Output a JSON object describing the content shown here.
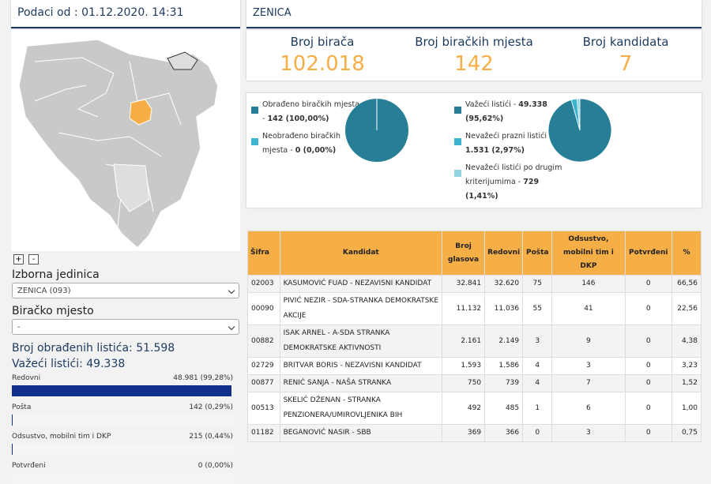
{
  "sidebar": {
    "updated": "Podaci od : 01.12.2020. 14:31",
    "zoom_in": "+",
    "zoom_out": "-",
    "unit_label": "Izborna jedinica",
    "unit_value": "ZENICA (093)",
    "station_label": "Biračko mjesto",
    "station_value": "-",
    "processed": "Broj obrađenih listića: 51.598",
    "valid": "Važeći listići: 49.338",
    "bars": [
      {
        "label": "Redovni",
        "value_text": "48.981 (99,28%)",
        "percent": 99.28
      },
      {
        "label": "Pošta",
        "value_text": "142 (0,29%)",
        "percent": 0.29
      },
      {
        "label": "Odsustvo, mobilni tim i DKP",
        "value_text": "215 (0,44%)",
        "percent": 0.44
      },
      {
        "label": "Potvrđeni",
        "value_text": "0 (0,00%)",
        "percent": 0
      }
    ]
  },
  "header": {
    "title": "ZENICA"
  },
  "stats": [
    {
      "label": "Broj birača",
      "value": "102.018"
    },
    {
      "label": "Broj biračkih mjesta",
      "value": "142"
    },
    {
      "label": "Broj kandidata",
      "value": "7"
    }
  ],
  "pies": [
    {
      "slices": [
        {
          "label": "Obrađeno biračkih mjesta -",
          "value_text": "142 (100,00%)",
          "percent": 100,
          "color": "#267f97"
        },
        {
          "label": "Neobrađeno biračkih mjesta -",
          "value_text": "0 (0,00%)",
          "percent": 0,
          "color": "#3db5d0"
        }
      ]
    },
    {
      "slices": [
        {
          "label": "Važeći listići -",
          "value_text": "49.338 (95,62%)",
          "percent": 95.62,
          "color": "#267f97"
        },
        {
          "label": "Nevažeći prazni listići -",
          "value_text": "1.531 (2,97%)",
          "percent": 2.97,
          "color": "#3db5d0"
        },
        {
          "label": "Nevažeći listići po drugim kriterijumima -",
          "value_text": "729 (1,41%)",
          "percent": 1.41,
          "color": "#93d4e4"
        }
      ]
    }
  ],
  "table": {
    "columns": [
      "Šifra",
      "Kandidat",
      "Broj glasova",
      "Redovni",
      "Pošta",
      "Odsustvo, mobilni tim i DKP",
      "Potvrđeni",
      "%"
    ],
    "rows": [
      [
        "02003",
        "KASUMOVIĆ FUAD - NEZAVISNI KANDIDAT",
        "32.841",
        "32.620",
        "75",
        "146",
        "0",
        "66,56"
      ],
      [
        "00090",
        "PIVIĆ NEZIR - SDA-STRANKA DEMOKRATSKE AKCIJE",
        "11.132",
        "11.036",
        "55",
        "41",
        "0",
        "22,56"
      ],
      [
        "00882",
        "ISAK ARNEL - A-SDA STRANKA DEMOKRATSKE AKTIVNOSTI",
        "2.161",
        "2.149",
        "3",
        "9",
        "0",
        "4,38"
      ],
      [
        "02729",
        "BRITVAR BORIS - NEZAVISNI KANDIDAT",
        "1.593",
        "1.586",
        "4",
        "3",
        "0",
        "3,23"
      ],
      [
        "00877",
        "RENIĆ SANJA - NAŠA STRANKA",
        "750",
        "739",
        "4",
        "7",
        "0",
        "1,52"
      ],
      [
        "00513",
        "SKELIĆ DŽENAN - STRANKA PENZIONERA/UMIROVLJENIKA BIH",
        "492",
        "485",
        "1",
        "6",
        "0",
        "1,00"
      ],
      [
        "01182",
        "BEGANOVIĆ NASIR - SBB",
        "369",
        "366",
        "0",
        "3",
        "0",
        "0,75"
      ]
    ]
  }
}
